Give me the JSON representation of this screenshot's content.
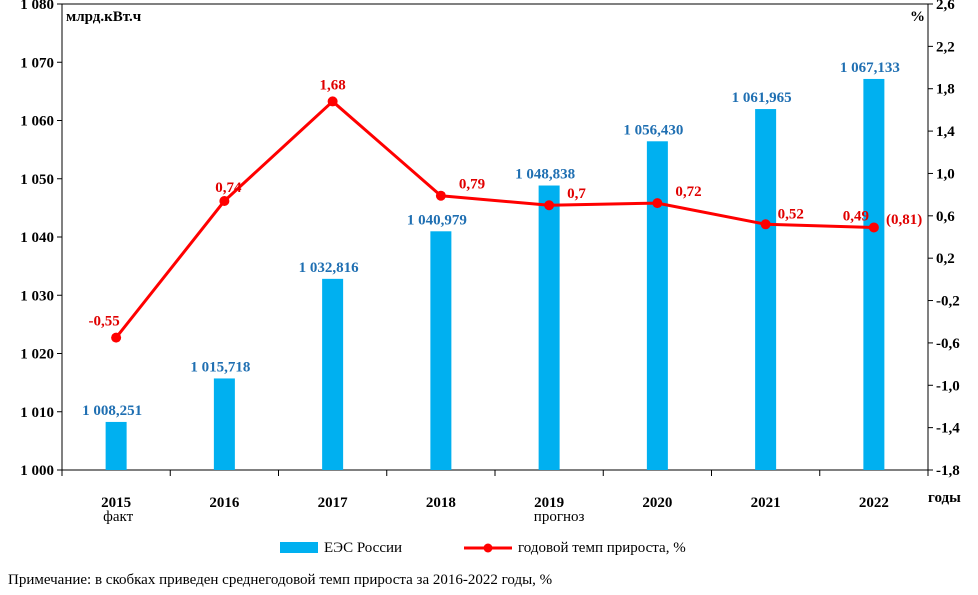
{
  "colors": {
    "bar": "#00B0F0",
    "line": "#FF0000",
    "bar_label": "#1F6FB2",
    "line_label": "#E00000",
    "axis": "#000000"
  },
  "chart_data": {
    "type": "bar+line",
    "categories": [
      "2015",
      "2016",
      "2017",
      "2018",
      "2019",
      "2020",
      "2021",
      "2022"
    ],
    "category_sublabels": [
      "факт",
      "",
      "",
      "",
      "прогноз",
      "",
      "",
      ""
    ],
    "series": [
      {
        "name": "ЕЭС России",
        "type": "bar",
        "axis": "left",
        "values": [
          1008.251,
          1015.718,
          1032.816,
          1040.979,
          1048.838,
          1056.43,
          1061.965,
          1067.133
        ],
        "labels": [
          "1 008,251",
          "1 015,718",
          "1 032,816",
          "1 040,979",
          "1 048,838",
          "1 056,430",
          "1 061,965",
          "1 067,133"
        ]
      },
      {
        "name": "годовой темп прироста, %",
        "type": "line",
        "axis": "right",
        "values": [
          -0.55,
          0.74,
          1.68,
          0.79,
          0.7,
          0.72,
          0.52,
          0.49
        ],
        "labels": [
          "-0,55",
          "0,74",
          "1,68",
          "0,79",
          "0,7",
          "0,72",
          "0,52",
          "0,49"
        ]
      }
    ],
    "annotation": "(0,81)",
    "yleft": {
      "label": "млрд.кВт.ч",
      "range": [
        1000,
        1080
      ],
      "ticks": [
        1000,
        1010,
        1020,
        1030,
        1040,
        1050,
        1060,
        1070,
        1080
      ],
      "tick_labels": [
        "1 000",
        "1 010",
        "1 020",
        "1 030",
        "1 040",
        "1 050",
        "1 060",
        "1 070",
        "1 080"
      ]
    },
    "yright": {
      "label": "%",
      "range": [
        -1.8,
        2.6
      ],
      "ticks": [
        -1.8,
        -1.4,
        -1.0,
        -0.6,
        -0.2,
        0.2,
        0.6,
        1.0,
        1.4,
        1.8,
        2.2,
        2.6
      ],
      "tick_labels": [
        "-1,8",
        "-1,4",
        "-1,0",
        "-0,6",
        "-0,2",
        "0,2",
        "0,6",
        "1,0",
        "1,4",
        "1,8",
        "2,2",
        "2,6"
      ]
    },
    "xlabel": "годы",
    "legend": [
      "ЕЭС России",
      "годовой темп прироста, %"
    ],
    "note": "Примечание: в скобках приведен среднегодовой темп прироста за 2016-2022 годы, %"
  }
}
